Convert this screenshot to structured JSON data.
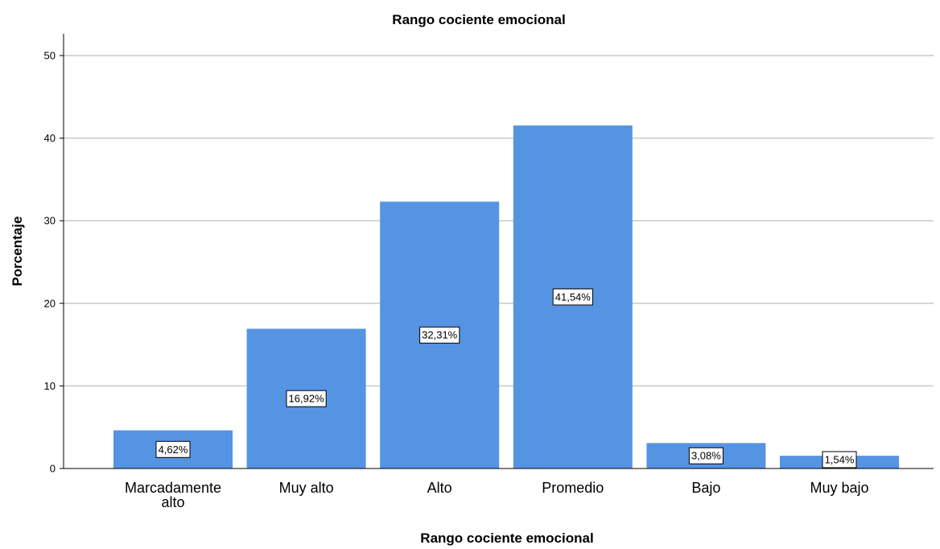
{
  "chart_data": {
    "type": "bar",
    "title": "Rango cociente emocional",
    "xlabel": "Rango cociente emocional",
    "ylabel": "Porcentaje",
    "categories": [
      [
        "Marcadamente",
        "alto"
      ],
      [
        "Muy alto"
      ],
      [
        "Alto"
      ],
      [
        "Promedio"
      ],
      [
        "Bajo"
      ],
      [
        "Muy bajo"
      ]
    ],
    "values": [
      4.62,
      16.92,
      32.31,
      41.54,
      3.08,
      1.54
    ],
    "data_labels": [
      "4,62%",
      "16,92%",
      "32,31%",
      "41,54%",
      "3,08%",
      "1,54%"
    ],
    "yticks": [
      "0",
      "10",
      "20",
      "30",
      "40",
      "50"
    ],
    "ylim": [
      0,
      52
    ],
    "grid": true,
    "legend": "none",
    "bar_color": "#5594e3",
    "grid_color": "#c8c8c8"
  }
}
